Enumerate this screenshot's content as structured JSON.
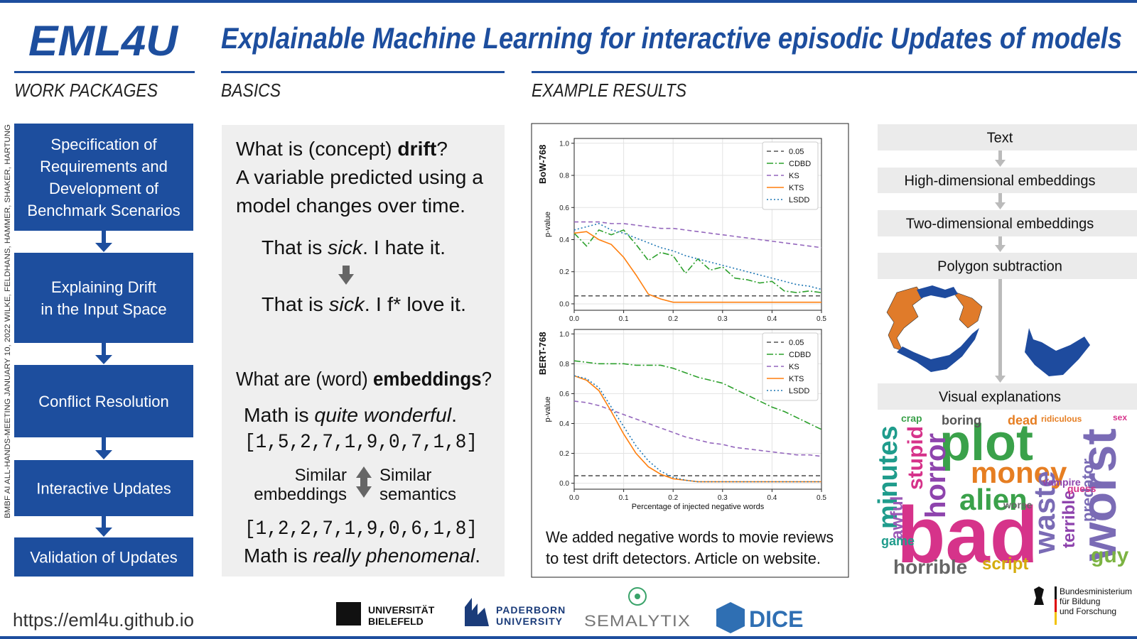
{
  "header": {
    "logo": "EML4U",
    "title": "Explainable Machine Learning for interactive episodic Updates of models"
  },
  "sections": [
    "WORK PACKAGES",
    "BASICS",
    "EXAMPLE RESULTS"
  ],
  "side_note": "BMBF   AI ALL-HANDS-MEETING   JANUARY 10, 2022   WILKE, FELDHANS, HAMMER, SHAKER, HARTUNG",
  "work_packages": [
    [
      "Specification of",
      "Requirements and",
      "Development of",
      "Benchmark Scenarios"
    ],
    [
      "Explaining Drift",
      "in the Input Space"
    ],
    [
      "Conflict Resolution"
    ],
    [
      "Interactive Updates"
    ],
    [
      "Validation of Updates"
    ]
  ],
  "basics": {
    "q1": [
      "What is (concept) ",
      "drift",
      "?"
    ],
    "definition": [
      "A variable predicted using a",
      "model changes over time."
    ],
    "example1": [
      "That is ",
      "sick",
      ". I hate it."
    ],
    "example2": [
      "That is ",
      "sick",
      ". I f* love it."
    ],
    "q2": [
      "What are (word) ",
      "embeddings",
      "?"
    ],
    "math1": [
      "Math is ",
      "quite wonderful",
      "."
    ],
    "vector1": "[1,5,2,7,1,9,0,7,1,8]",
    "similar_left": [
      "Similar",
      "embeddings"
    ],
    "similar_right": [
      "Similar",
      "semantics"
    ],
    "vector2": "[1,2,2,7,1,9,0,6,1,8]",
    "math2": [
      "Math is ",
      "really phenomenal",
      "."
    ]
  },
  "chart_data": [
    {
      "type": "line",
      "title": "BoW-768",
      "y_label": "p-value",
      "x": [
        0,
        0.025,
        0.05,
        0.075,
        0.1,
        0.125,
        0.15,
        0.175,
        0.2,
        0.225,
        0.25,
        0.275,
        0.3,
        0.325,
        0.35,
        0.375,
        0.4,
        0.425,
        0.45,
        0.475,
        0.5
      ],
      "xlim": [
        0,
        0.5
      ],
      "xticks": [
        {
          "value": 0,
          "label": "0.0"
        },
        0.1,
        0.2,
        0.3,
        0.4,
        0.5
      ],
      "ylim": [
        -0.04,
        1.03
      ],
      "yticks": [
        {
          "value": 0,
          "label": "0.0"
        },
        0.2,
        0.4,
        0.6,
        0.8,
        {
          "value": 1,
          "label": "1.0"
        }
      ],
      "grid": true,
      "legend": "upper right",
      "series": [
        {
          "name": "0.05",
          "color": "#555555",
          "dash": "dashed",
          "values": [
            0.05,
            0.05,
            0.05,
            0.05,
            0.05,
            0.05,
            0.05,
            0.05,
            0.05,
            0.05,
            0.05,
            0.05,
            0.05,
            0.05,
            0.05,
            0.05,
            0.05,
            0.05,
            0.05,
            0.05,
            0.05
          ]
        },
        {
          "name": "CDBD",
          "color": "#2ca02c",
          "dash": "dashdot",
          "values": [
            0.44,
            0.36,
            0.46,
            0.43,
            0.46,
            0.37,
            0.27,
            0.32,
            0.3,
            0.19,
            0.28,
            0.21,
            0.23,
            0.16,
            0.15,
            0.13,
            0.14,
            0.08,
            0.07,
            0.08,
            0.07
          ]
        },
        {
          "name": "KS",
          "color": "#9467bd",
          "dash": "dashed",
          "values": [
            0.51,
            0.51,
            0.51,
            0.5,
            0.5,
            0.49,
            0.48,
            0.47,
            0.47,
            0.46,
            0.45,
            0.44,
            0.43,
            0.42,
            0.41,
            0.4,
            0.39,
            0.38,
            0.37,
            0.36,
            0.35
          ]
        },
        {
          "name": "KTS",
          "color": "#ff7f0e",
          "dash": "solid",
          "values": [
            0.44,
            0.45,
            0.4,
            0.37,
            0.29,
            0.18,
            0.06,
            0.03,
            0.01,
            0.01,
            0.01,
            0.01,
            0.01,
            0.01,
            0.01,
            0.01,
            0.01,
            0.01,
            0.01,
            0.01,
            0.01
          ]
        },
        {
          "name": "LSDD",
          "color": "#1f77b4",
          "dash": "dotted",
          "values": [
            0.46,
            0.48,
            0.5,
            0.46,
            0.44,
            0.41,
            0.38,
            0.35,
            0.33,
            0.3,
            0.28,
            0.26,
            0.24,
            0.22,
            0.2,
            0.18,
            0.16,
            0.14,
            0.12,
            0.11,
            0.09
          ]
        }
      ]
    },
    {
      "type": "line",
      "title": "BERT-768",
      "y_label": "p-value",
      "x_label": "Percentage of injected negative words",
      "x": [
        0,
        0.025,
        0.05,
        0.075,
        0.1,
        0.125,
        0.15,
        0.175,
        0.2,
        0.225,
        0.25,
        0.275,
        0.3,
        0.325,
        0.35,
        0.375,
        0.4,
        0.425,
        0.45,
        0.475,
        0.5
      ],
      "xlim": [
        0,
        0.5
      ],
      "xticks": [
        {
          "value": 0,
          "label": "0.0"
        },
        0.1,
        0.2,
        0.3,
        0.4,
        0.5
      ],
      "ylim": [
        -0.04,
        1.03
      ],
      "yticks": [
        {
          "value": 0,
          "label": "0.0"
        },
        0.2,
        0.4,
        0.6,
        0.8,
        {
          "value": 1,
          "label": "1.0"
        }
      ],
      "grid": true,
      "legend": "upper right",
      "series": [
        {
          "name": "0.05",
          "color": "#555555",
          "dash": "dashed",
          "values": [
            0.05,
            0.05,
            0.05,
            0.05,
            0.05,
            0.05,
            0.05,
            0.05,
            0.05,
            0.05,
            0.05,
            0.05,
            0.05,
            0.05,
            0.05,
            0.05,
            0.05,
            0.05,
            0.05,
            0.05,
            0.05
          ]
        },
        {
          "name": "CDBD",
          "color": "#2ca02c",
          "dash": "dashdot",
          "values": [
            0.82,
            0.81,
            0.8,
            0.8,
            0.8,
            0.79,
            0.79,
            0.79,
            0.77,
            0.74,
            0.71,
            0.69,
            0.67,
            0.63,
            0.59,
            0.55,
            0.51,
            0.48,
            0.44,
            0.4,
            0.36
          ]
        },
        {
          "name": "KS",
          "color": "#9467bd",
          "dash": "dashed",
          "values": [
            0.55,
            0.54,
            0.52,
            0.49,
            0.46,
            0.43,
            0.4,
            0.37,
            0.34,
            0.31,
            0.29,
            0.27,
            0.26,
            0.24,
            0.23,
            0.22,
            0.21,
            0.2,
            0.19,
            0.19,
            0.18
          ]
        },
        {
          "name": "KTS",
          "color": "#ff7f0e",
          "dash": "solid",
          "values": [
            0.72,
            0.69,
            0.62,
            0.48,
            0.33,
            0.2,
            0.11,
            0.06,
            0.03,
            0.02,
            0.01,
            0.01,
            0.01,
            0.01,
            0.01,
            0.01,
            0.01,
            0.01,
            0.01,
            0.01,
            0.01
          ]
        },
        {
          "name": "LSDD",
          "color": "#1f77b4",
          "dash": "dotted",
          "values": [
            0.72,
            0.7,
            0.64,
            0.51,
            0.38,
            0.25,
            0.15,
            0.08,
            0.04,
            0.02,
            0.01,
            0.01,
            0.01,
            0.01,
            0.01,
            0.01,
            0.01,
            0.01,
            0.01,
            0.01,
            0.01
          ]
        }
      ]
    }
  ],
  "caption": [
    "We added negative words to movie reviews",
    "to test drift detectors. Article on website."
  ],
  "pipeline": [
    "Text",
    "High-dimensional embeddings",
    "Two-dimensional embeddings",
    "Polygon subtraction",
    "Visual explanations"
  ],
  "word_cloud": [
    "bad",
    "plot",
    "worst",
    "money",
    "alien",
    "horror",
    "minutes",
    "waste",
    "horrible",
    "stupid",
    "awful",
    "guy",
    "script",
    "terrible",
    "predator",
    "boring",
    "dead",
    "crap",
    "game",
    "vampire",
    "worse",
    "guess",
    "ridiculous",
    "sex"
  ],
  "footer": {
    "url": "https://eml4u.github.io",
    "bielefeld": [
      "UNIVERSITÄT",
      "BIELEFELD"
    ],
    "paderborn": [
      "PADERBORN",
      "UNIVERSITY"
    ],
    "semalytix": "SEMALYTIX",
    "dice": "DICE",
    "bmbf": [
      "Bundesministerium",
      "für Bildung",
      "und Forschung"
    ]
  }
}
